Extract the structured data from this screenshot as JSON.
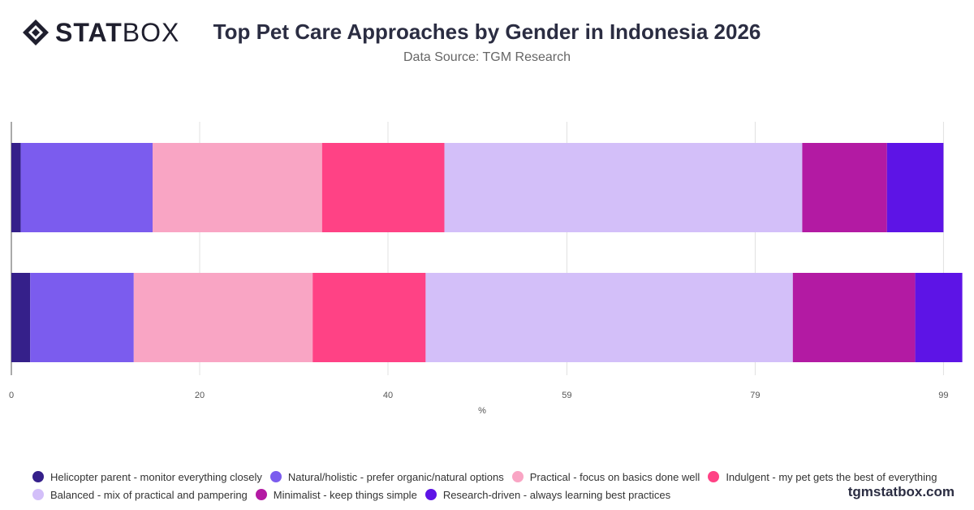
{
  "header": {
    "logo_bold": "STAT",
    "logo_light": "BOX",
    "title": "Top Pet Care Approaches by Gender in Indonesia 2026",
    "subtitle": "Data Source: TGM Research"
  },
  "watermark": "tgmstatbox.com",
  "chart_data": {
    "type": "bar",
    "orientation": "horizontal",
    "stacked": true,
    "title": "Top Pet Care Approaches by Gender in Indonesia 2026",
    "xlabel": "%",
    "ylabel": "",
    "xlim": [
      0,
      100
    ],
    "xticks": [
      0,
      20,
      40,
      59,
      79,
      99
    ],
    "grid": true,
    "legend_position": "bottom",
    "categories": [
      "",
      ""
    ],
    "series": [
      {
        "name": "Helicopter parent - monitor everything closely",
        "color": "#35208a",
        "values": [
          1,
          2
        ]
      },
      {
        "name": "Natural/holistic - prefer organic/natural options",
        "color": "#7b5cee",
        "values": [
          14,
          11
        ]
      },
      {
        "name": "Practical - focus on basics done well",
        "color": "#f9a5c4",
        "values": [
          18,
          19
        ]
      },
      {
        "name": "Indulgent - my pet gets the best of everything",
        "color": "#ff4285",
        "values": [
          13,
          12
        ]
      },
      {
        "name": "Balanced - mix of practical and pampering",
        "color": "#d3bff9",
        "values": [
          38,
          39
        ]
      },
      {
        "name": "Minimalist - keep things simple",
        "color": "#b31aa3",
        "values": [
          9,
          13
        ]
      },
      {
        "name": "Research-driven - always learning best practices",
        "color": "#5d14e6",
        "values": [
          6,
          5
        ]
      }
    ]
  }
}
